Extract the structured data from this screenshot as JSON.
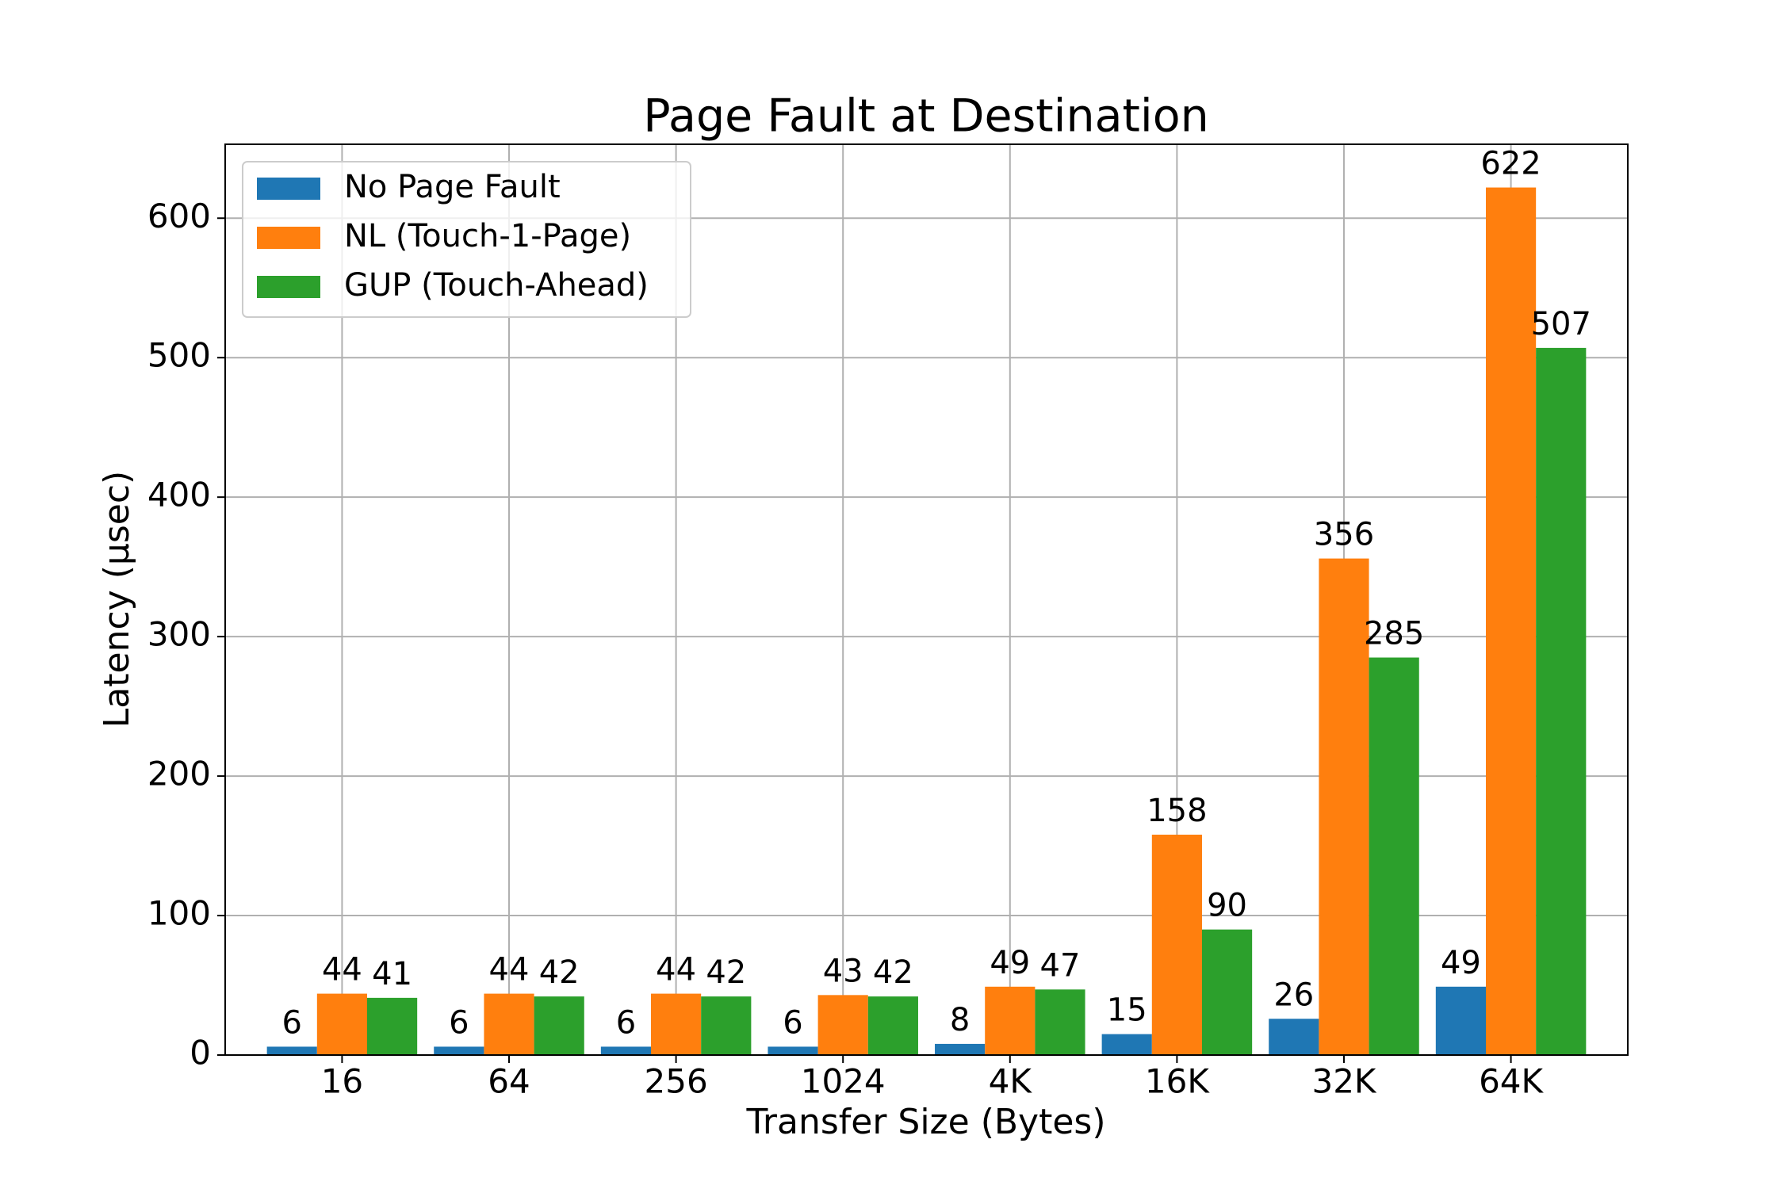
{
  "chart_data": {
    "type": "bar",
    "title": "Page Fault at Destination",
    "x_label": "Transfer Size (Bytes)",
    "y_label": "Latency (μsec)",
    "categories": [
      "16",
      "64",
      "256",
      "1024",
      "4K",
      "16K",
      "32K",
      "64K"
    ],
    "series": [
      {
        "name": "No Page Fault",
        "color": "#1f77b4",
        "values": [
          6,
          6,
          6,
          6,
          8,
          15,
          26,
          49
        ]
      },
      {
        "name": "NL (Touch-1-Page)",
        "color": "#ff7f0e",
        "values": [
          44,
          44,
          44,
          43,
          49,
          158,
          356,
          622
        ]
      },
      {
        "name": "GUP (Touch-Ahead)",
        "color": "#2ca02c",
        "values": [
          41,
          42,
          42,
          42,
          47,
          90,
          285,
          507
        ]
      }
    ],
    "ylim": [
      0,
      653
    ],
    "yticks": [
      0,
      100,
      200,
      300,
      400,
      500,
      600
    ],
    "grid": true,
    "legend": "upper left"
  }
}
